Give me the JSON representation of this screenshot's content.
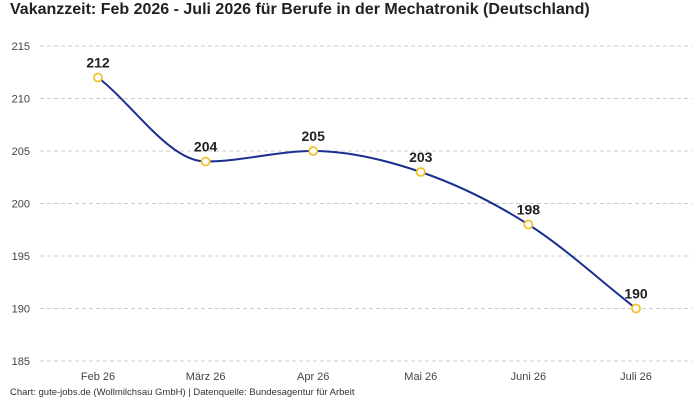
{
  "title": "Vakanzzeit: Feb 2026 - Juli 2026 für Berufe in der Mechatronik (Deutschland)",
  "footer": "Chart: gute-jobs.de (Wollmilchsau GmbH) | Datenquelle: Bundesagentur für Arbeit",
  "colors": {
    "line": "#1a2f8f",
    "marker_stroke": "#f2c12e",
    "marker_fill": "#ffffff",
    "grid": "#cccccc"
  },
  "chart_data": {
    "type": "line",
    "title": "Vakanzzeit: Feb 2026 - Juli 2026 für Berufe in der Mechatronik (Deutschland)",
    "xlabel": "",
    "ylabel": "",
    "categories": [
      "Feb 26",
      "März 26",
      "Apr 26",
      "Mai 26",
      "Juni 26",
      "Juli 26"
    ],
    "series": [
      {
        "values": [
          212,
          204,
          205,
          203,
          198,
          190
        ]
      }
    ],
    "data_labels": [
      "212",
      "204",
      "205",
      "203",
      "198",
      "190"
    ],
    "y_ticks": [
      185,
      190,
      195,
      200,
      205,
      210,
      215
    ],
    "y_tick_labels": [
      "185",
      "190",
      "195",
      "200",
      "205",
      "210",
      "215"
    ],
    "ylim": [
      185,
      215
    ],
    "grid": "horizontal dashed",
    "smooth": true,
    "legend": "none"
  }
}
